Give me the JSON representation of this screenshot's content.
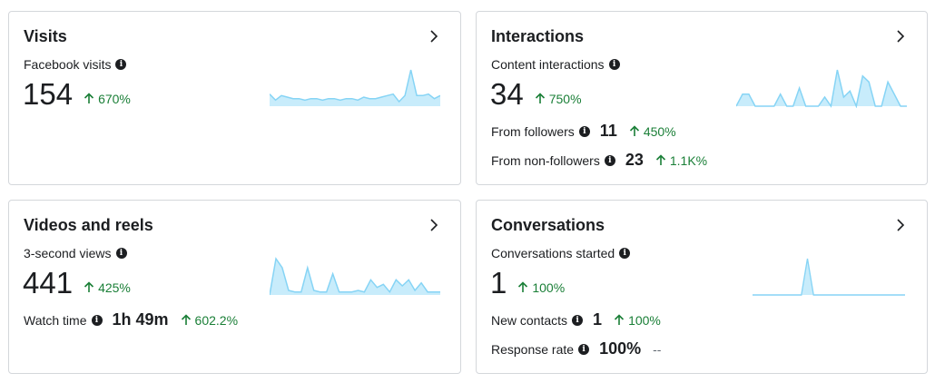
{
  "cards": {
    "visits": {
      "title": "Visits",
      "metric_label": "Facebook visits",
      "value": "154",
      "delta": "670%",
      "sparkline": [
        8,
        4,
        7,
        6,
        5,
        5,
        4,
        5,
        5,
        4,
        5,
        5,
        4,
        5,
        5,
        4,
        6,
        5,
        5,
        6,
        7,
        8,
        3,
        7,
        24,
        7,
        7,
        8,
        5,
        7
      ]
    },
    "interactions": {
      "title": "Interactions",
      "metric_label": "Content interactions",
      "value": "34",
      "delta": "750%",
      "rows": [
        {
          "label": "From followers",
          "value": "11",
          "delta": "450%"
        },
        {
          "label": "From non-followers",
          "value": "23",
          "delta": "1.1K%"
        }
      ],
      "sparkline": [
        0,
        8,
        8,
        0,
        0,
        0,
        0,
        8,
        0,
        0,
        12,
        0,
        0,
        0,
        6,
        0,
        24,
        6,
        10,
        0,
        20,
        16,
        0,
        0,
        16,
        8,
        0,
        0
      ]
    },
    "videos": {
      "title": "Videos and reels",
      "metric_label": "3-second views",
      "value": "441",
      "delta": "425%",
      "rows": [
        {
          "label": "Watch time",
          "value": "1h 49m",
          "delta": "602.2%"
        }
      ],
      "sparkline": [
        0,
        24,
        18,
        3,
        2,
        2,
        18,
        3,
        2,
        2,
        14,
        2,
        2,
        2,
        3,
        2,
        10,
        5,
        7,
        2,
        10,
        6,
        10,
        3,
        8,
        2,
        2,
        2
      ]
    },
    "conversations": {
      "title": "Conversations",
      "metric_label": "Conversations started",
      "value": "1",
      "delta": "100%",
      "rows": [
        {
          "label": "New contacts",
          "value": "1",
          "delta": "100%"
        },
        {
          "label": "Response rate",
          "value": "100%",
          "dash": "--"
        }
      ],
      "sparkline": [
        0,
        0,
        0,
        0,
        0,
        0,
        0,
        0,
        0,
        24,
        0,
        0,
        0,
        0,
        0,
        0,
        0,
        0,
        0,
        0,
        0,
        0,
        0,
        0,
        0,
        0
      ]
    }
  },
  "icons": {
    "info": "info-icon",
    "chevron": "chevron-right-icon",
    "arrow": "arrow-up-icon"
  },
  "colors": {
    "positive": "#1a7f37",
    "spark_stroke": "#86d4f5",
    "spark_fill": "#c8ecfb"
  }
}
